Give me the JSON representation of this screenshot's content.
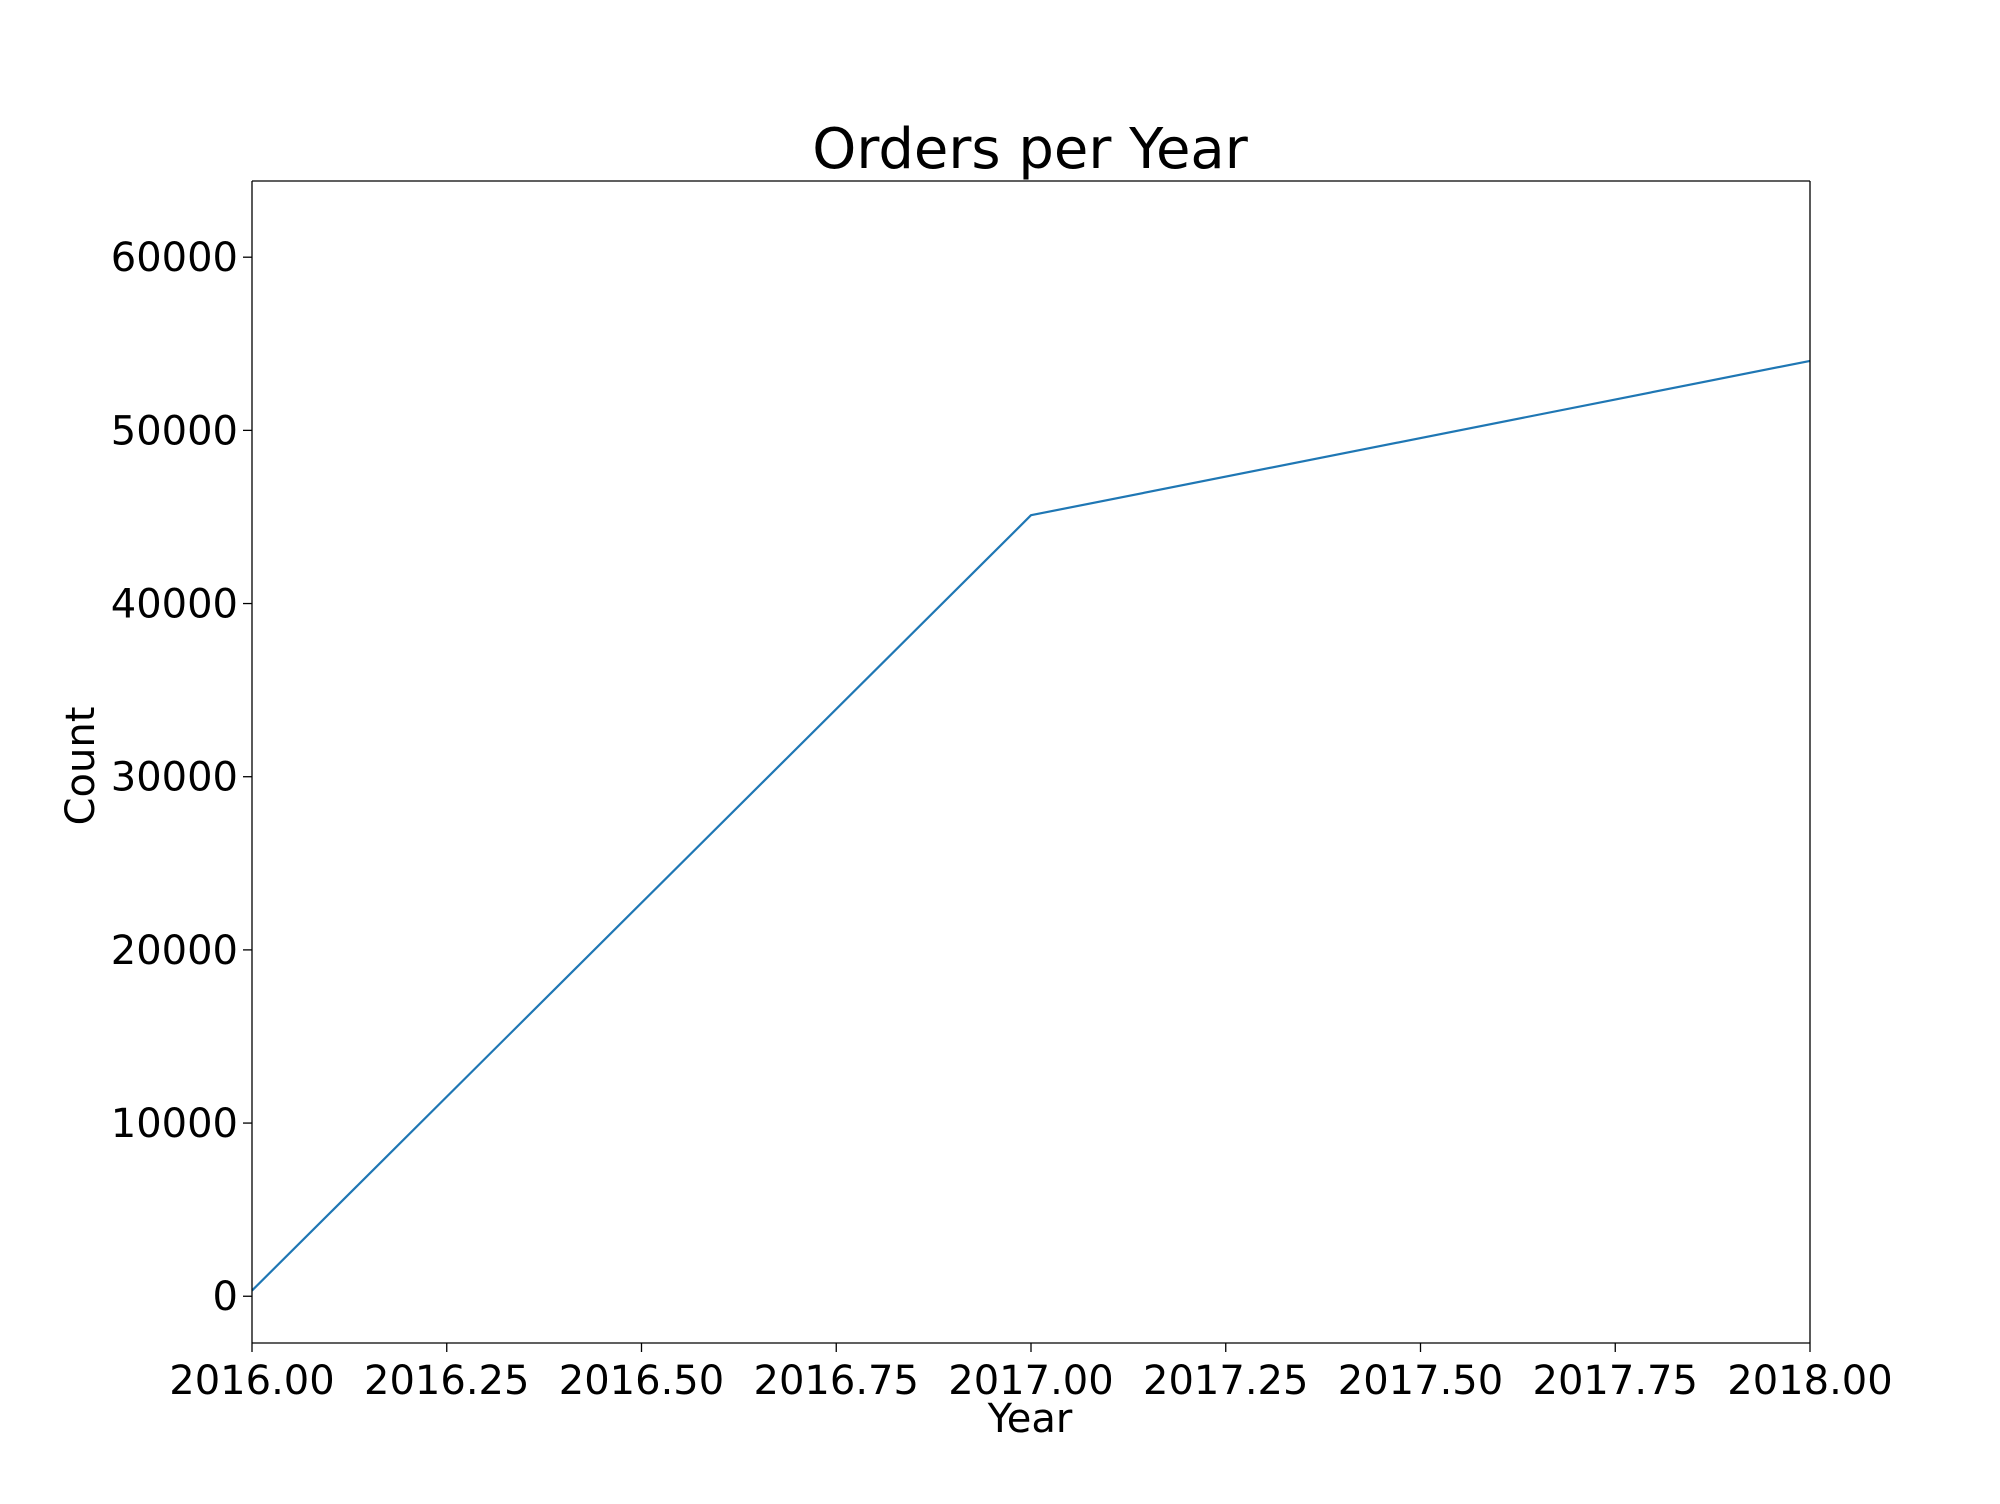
{
  "chart_data": {
    "type": "line",
    "title": "Orders per Year",
    "xlabel": "Year",
    "ylabel": "Count",
    "xlim": [
      2016.0,
      2018.0
    ],
    "ylim": [
      -2700,
      64400
    ],
    "xticks": [
      2016.0,
      2016.25,
      2016.5,
      2016.75,
      2017.0,
      2017.25,
      2017.5,
      2017.75,
      2018.0
    ],
    "xtick_labels": [
      "2016.00",
      "2016.25",
      "2016.50",
      "2016.75",
      "2017.00",
      "2017.25",
      "2017.50",
      "2017.75",
      "2018.00"
    ],
    "yticks": [
      0,
      10000,
      20000,
      30000,
      40000,
      50000,
      60000
    ],
    "ytick_labels": [
      "0",
      "10000",
      "20000",
      "30000",
      "40000",
      "50000",
      "60000"
    ],
    "grid": false,
    "legend": "none",
    "series": [
      {
        "x": [
          2016,
          2017,
          2018
        ],
        "y": [
          329,
          45101,
          54011
        ],
        "color": "#1f77b4"
      }
    ]
  }
}
